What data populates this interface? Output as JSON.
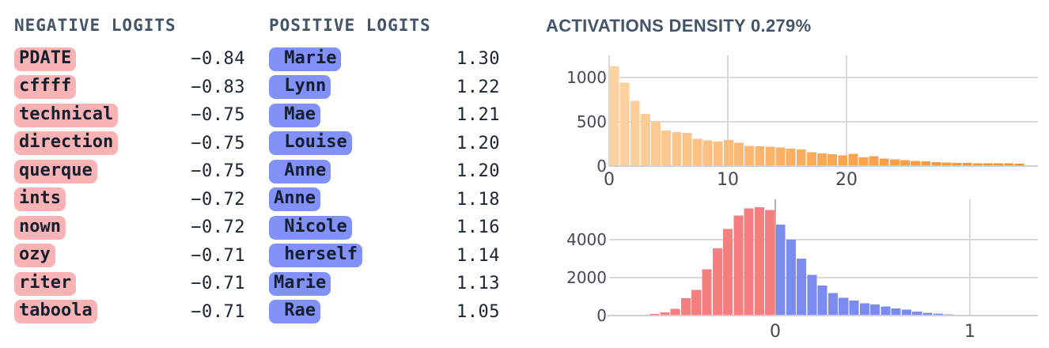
{
  "negative_logits": {
    "header": "NEGATIVE LOGITS",
    "items": [
      {
        "token": "PDATE",
        "value": "−0.84"
      },
      {
        "token": "cffff",
        "value": "−0.83"
      },
      {
        "token": "technical",
        "value": "−0.75"
      },
      {
        "token": "direction",
        "value": "−0.75"
      },
      {
        "token": "querque",
        "value": "−0.75"
      },
      {
        "token": "ints",
        "value": "−0.72"
      },
      {
        "token": "nown",
        "value": "−0.72"
      },
      {
        "token": "ozy",
        "value": "−0.71"
      },
      {
        "token": "riter",
        "value": "−0.71"
      },
      {
        "token": "taboola",
        "value": "−0.71"
      }
    ]
  },
  "positive_logits": {
    "header": "POSITIVE LOGITS",
    "items": [
      {
        "token": " Marie",
        "value": "1.30"
      },
      {
        "token": " Lynn",
        "value": "1.22"
      },
      {
        "token": " Mae",
        "value": "1.21"
      },
      {
        "token": " Louise",
        "value": "1.20"
      },
      {
        "token": " Anne",
        "value": "1.20"
      },
      {
        "token": "Anne",
        "value": "1.18"
      },
      {
        "token": " Nicole",
        "value": "1.16"
      },
      {
        "token": " herself",
        "value": "1.14"
      },
      {
        "token": "Marie",
        "value": "1.13"
      },
      {
        "token": " Rae",
        "value": "1.05"
      }
    ]
  },
  "activations": {
    "header": "ACTIVATIONS DENSITY 0.279%"
  },
  "chart_data": [
    {
      "type": "bar",
      "name": "activation-density-histogram",
      "title": "ACTIVATIONS DENSITY 0.279%",
      "xticks": [
        0,
        10,
        20
      ],
      "yticks": [
        0,
        500,
        1000
      ],
      "xlim": [
        0,
        36
      ],
      "ylim": [
        0,
        1200
      ],
      "grid": true,
      "bin_width": 0.875,
      "series": [
        {
          "name": "activations",
          "color": "orange-gradient",
          "x_start": 0,
          "values": [
            1130,
            940,
            738,
            590,
            505,
            402,
            386,
            373,
            306,
            289,
            278,
            293,
            262,
            226,
            222,
            218,
            208,
            196,
            186,
            155,
            142,
            132,
            122,
            137,
            96,
            112,
            86,
            76,
            66,
            60,
            52,
            45,
            40,
            36,
            34,
            33,
            32,
            31,
            30,
            29
          ]
        }
      ]
    },
    {
      "type": "bar",
      "name": "logits-density-histogram",
      "title": "",
      "xticks": [
        0,
        1
      ],
      "yticks": [
        0,
        2000,
        4000
      ],
      "xlim": [
        -0.95,
        1.4
      ],
      "ylim": [
        0,
        5900
      ],
      "grid": true,
      "bin_width": 0.054,
      "series": [
        {
          "name": "negative",
          "color": "#f57e7e",
          "x_start": -0.864,
          "values": [
            8,
            14,
            22,
            40,
            84,
            170,
            350,
            910,
            1360,
            2430,
            3540,
            4570,
            5280,
            5650,
            5710,
            5570
          ]
        },
        {
          "name": "positive",
          "color": "#7b8bf2",
          "x_start": 0,
          "values": [
            4800,
            4000,
            3000,
            2150,
            1590,
            1185,
            934,
            795,
            655,
            585,
            474,
            376,
            307,
            209,
            139,
            98,
            56,
            28
          ]
        }
      ]
    }
  ],
  "colors": {
    "header_text": "#43546a",
    "token_text": "#151f2e",
    "value_text": "#1a2433",
    "negative_pill_bg": "#f9b3b5",
    "positive_pill_bg": "#8191f8",
    "negative_bar": "#f57e7e",
    "positive_bar": "#7b8bf2",
    "activation_gradient": [
      "#fdd3a4",
      "#faa653",
      "#f78c2e"
    ],
    "gridline": "#d9d9d9",
    "baseline": "#cfcfcf",
    "zero_line": "#b2b2b2",
    "tick_text": "#47474f"
  }
}
